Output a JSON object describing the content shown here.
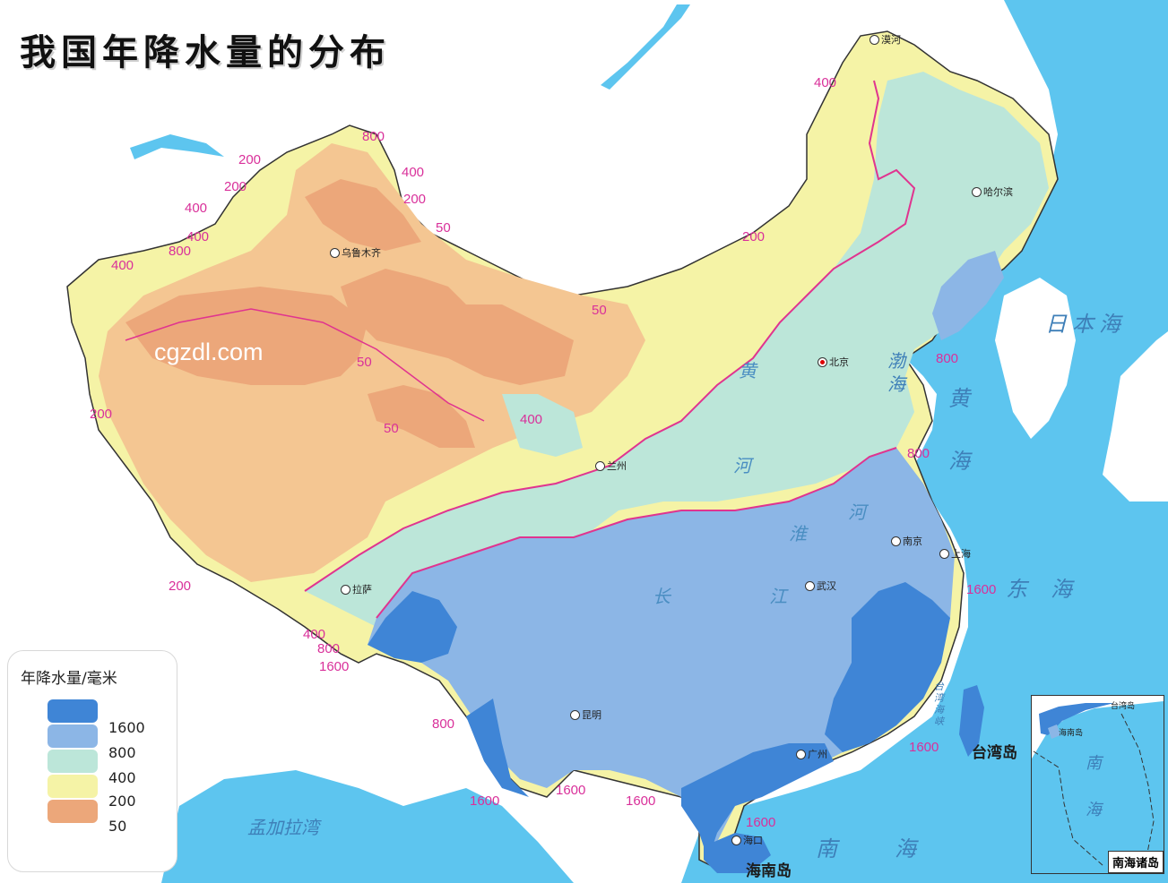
{
  "title": "我国年降水量的分布",
  "watermark": "cgzdl.com",
  "legend": {
    "title": "年降水量/毫米",
    "items": [
      {
        "label": "1600",
        "color": "#3f85d6"
      },
      {
        "label": "800",
        "color": "#8cb6e6"
      },
      {
        "label": "400",
        "color": "#bce6d9"
      },
      {
        "label": "200",
        "color": "#f5f3a6"
      },
      {
        "label": "50",
        "color": "#eca77a"
      }
    ]
  },
  "zone_colors": {
    "sea": "#5dc5ef",
    "land_outside": "#ffffff",
    "desert_light": "#f4c692",
    "isohyet_line": "#e0348f"
  },
  "isohyet_labels": [
    "800",
    "400",
    "200",
    "200",
    "400",
    "400",
    "800",
    "200",
    "50",
    "400",
    "50",
    "200",
    "50",
    "50",
    "400",
    "200",
    "800",
    "800",
    "200",
    "400",
    "800",
    "1600",
    "800",
    "1600",
    "1600",
    "1600",
    "1600",
    "1600",
    "1600",
    "400"
  ],
  "cities": [
    {
      "name": "漠河",
      "capital": false
    },
    {
      "name": "哈尔滨",
      "capital": false
    },
    {
      "name": "乌鲁木齐",
      "capital": false
    },
    {
      "name": "北京",
      "capital": true
    },
    {
      "name": "兰州",
      "capital": false
    },
    {
      "name": "南京",
      "capital": false
    },
    {
      "name": "上海",
      "capital": false
    },
    {
      "name": "武汉",
      "capital": false
    },
    {
      "name": "拉萨",
      "capital": false
    },
    {
      "name": "昆明",
      "capital": false
    },
    {
      "name": "广州",
      "capital": false
    },
    {
      "name": "海口",
      "capital": false
    }
  ],
  "water_bodies": [
    {
      "name": "日本海"
    },
    {
      "name": "渤海"
    },
    {
      "name": "黄海"
    },
    {
      "name": "东海"
    },
    {
      "name": "南海"
    },
    {
      "name": "孟加拉湾"
    },
    {
      "name": "台湾海峡"
    }
  ],
  "rivers": [
    "黄",
    "河",
    "淮",
    "河",
    "长",
    "江"
  ],
  "islands": [
    "台湾岛",
    "海南岛"
  ],
  "inset": {
    "label": "南海诸岛",
    "place": "台湾岛",
    "water": "南海",
    "place2": "海南岛"
  }
}
